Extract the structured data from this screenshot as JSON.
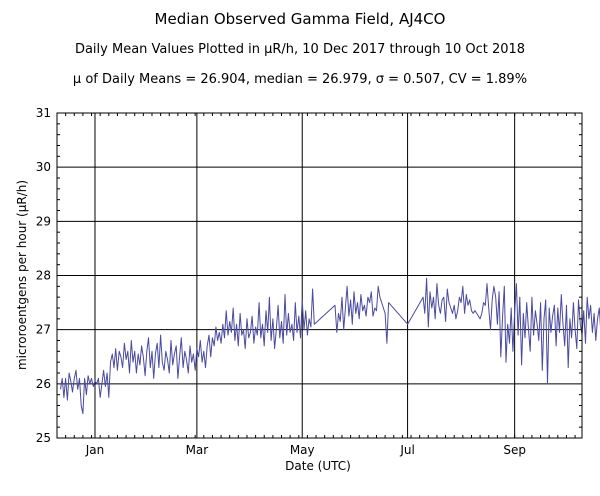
{
  "chart_data": {
    "type": "line",
    "title": "Median Observed Gamma Field, AJ4CO",
    "subtitle": "Daily Mean Values Plotted in μR/h, 10 Dec 2017 through 10 Oct 2018",
    "stats_line": "μ of Daily Means = 26.904,   median = 26.979,   σ = 0.507,   CV = 1.89%",
    "xlabel": "Date (UTC)",
    "ylabel": "microroentgens per hour (μR/h)",
    "ylim": [
      25,
      31
    ],
    "yticks": [
      "25",
      "26",
      "27",
      "28",
      "29",
      "30",
      "31"
    ],
    "xlim": [
      "2017-12-10",
      "2018-10-10"
    ],
    "xticks": [
      {
        "date": "2018-01-01",
        "label": "Jan"
      },
      {
        "date": "2018-03-01",
        "label": "Mar"
      },
      {
        "date": "2018-05-01",
        "label": "May"
      },
      {
        "date": "2018-07-01",
        "label": "Jul"
      },
      {
        "date": "2018-09-01",
        "label": "Sep"
      }
    ],
    "grid": true,
    "line_color": "#4a4aa0",
    "series": [
      {
        "start_date": "2017-12-12",
        "values": [
          25.9,
          26.1,
          25.75,
          26.1,
          25.7,
          26.2,
          26.05,
          25.85,
          26.1,
          26.25,
          25.9,
          26.1,
          25.6,
          25.45,
          26.1,
          25.8,
          26.15,
          26.0,
          26.1,
          25.95,
          26.05,
          26.0,
          26.1,
          25.75,
          26.0,
          26.25,
          25.95,
          26.2,
          25.75,
          26.4,
          26.55,
          26.3,
          26.65,
          26.25,
          26.6,
          26.5,
          26.3,
          26.75,
          26.45,
          26.6,
          26.2,
          26.8,
          26.4,
          26.6,
          26.2,
          26.55,
          26.35,
          26.7,
          26.5,
          26.15,
          26.6,
          26.85,
          26.3,
          26.6,
          26.1,
          26.55,
          26.75,
          26.3,
          26.9,
          26.4,
          26.25,
          26.6,
          26.45,
          26.2,
          26.8,
          26.35,
          26.55,
          26.7,
          26.1,
          26.5,
          26.85,
          26.3,
          26.6,
          26.45,
          26.2,
          26.7,
          26.4,
          26.55,
          26.25,
          26.65,
          26.5,
          26.8,
          26.4,
          26.6,
          26.3,
          26.7,
          26.9,
          26.5,
          26.85,
          26.7,
          27.05,
          26.8,
          26.95,
          26.75,
          27.1,
          26.85,
          27.35,
          26.9,
          27.15,
          26.95,
          27.4,
          26.8,
          27.1,
          26.7,
          27.3,
          26.9,
          27.0,
          26.65,
          27.2,
          26.85,
          26.95,
          27.25,
          26.75,
          27.05,
          26.9,
          27.5,
          26.85,
          27.1,
          26.7,
          27.35,
          26.95,
          27.6,
          26.8,
          27.2,
          26.65,
          27.0,
          27.45,
          26.85,
          27.15,
          26.75,
          27.65,
          26.9,
          27.3,
          26.95,
          27.1,
          26.8,
          27.5,
          26.95,
          27.25,
          26.85,
          27.55,
          27.0,
          27.35,
          26.9,
          27.2,
          27.05,
          27.75,
          27.1,
          27.45,
          26.95,
          27.3,
          27.15,
          27.6,
          27.0,
          27.4,
          27.8,
          27.25,
          27.55,
          27.1,
          27.7,
          27.3,
          27.5,
          27.2,
          27.65,
          27.35,
          27.45,
          27.25,
          27.6,
          27.5,
          27.7,
          27.25,
          27.4,
          27.35,
          27.8,
          27.6,
          27.5,
          27.4,
          27.3,
          26.75,
          27.5,
          27.1,
          27.6,
          27.3,
          27.95,
          27.05,
          27.7,
          27.4,
          27.6,
          27.2,
          27.85,
          27.45,
          27.3,
          27.55,
          27.6,
          27.15,
          27.75,
          27.5,
          27.4,
          27.3,
          27.45,
          27.2,
          27.35,
          27.6,
          27.5,
          27.8,
          27.3,
          27.65,
          27.45,
          27.55,
          27.35,
          27.3,
          27.35,
          27.3,
          27.25,
          27.2,
          27.3,
          27.5,
          27.45,
          27.85,
          27.4,
          27.0,
          27.55,
          27.8,
          27.6,
          27.1,
          27.7,
          26.5,
          27.25,
          27.8,
          26.4,
          27.1,
          26.75,
          27.4,
          26.6,
          27.3,
          27.85,
          26.9,
          27.6,
          26.35,
          27.3,
          26.85,
          27.5,
          27.0,
          26.6,
          27.6,
          26.9,
          27.35,
          27.1,
          26.8,
          27.5,
          26.25,
          27.2,
          27.55,
          26.0,
          27.4,
          26.95,
          27.25,
          27.45,
          26.7,
          27.4,
          26.95,
          27.65,
          27.1,
          26.7,
          27.45,
          26.3,
          27.2,
          26.85,
          27.5,
          27.0,
          26.65,
          27.55,
          27.1,
          26.9,
          27.35,
          26.75,
          27.6,
          27.2,
          27.45,
          26.95,
          27.3,
          26.8,
          27.2,
          27.4,
          26.9,
          27.5,
          26.7,
          27.15,
          27.6,
          27.3,
          26.45,
          27.55,
          26.95,
          27.0,
          27.8,
          26.6,
          27.35,
          27.05,
          27.5,
          26.8,
          27.4,
          26.95,
          26.7,
          27.3,
          27.95,
          27.3,
          26.9,
          27.15,
          26.75,
          27.4,
          27.0,
          26.85,
          27.9
        ],
        "gaps": [
          {
            "from": "2018-05-08",
            "to": "2018-05-20"
          },
          {
            "from": "2018-06-20",
            "to": "2018-07-01"
          },
          {
            "from": "2018-07-01",
            "to": "2018-07-10"
          }
        ]
      }
    ]
  }
}
